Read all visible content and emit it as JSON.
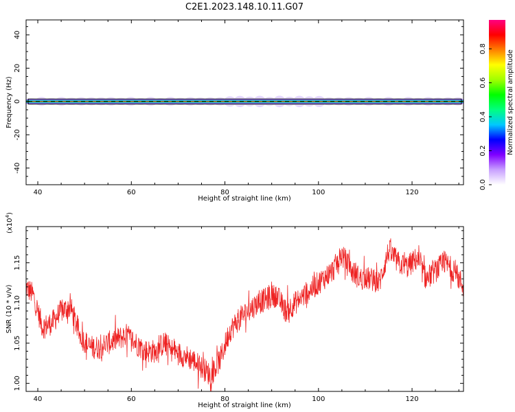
{
  "title": "C2E1.2023.148.10.11.G07",
  "chart_data": [
    {
      "type": "heatmap",
      "xlabel": "Height of straight line (km)",
      "ylabel": "Frequency (Hz)",
      "xlim": [
        37.5,
        131
      ],
      "ylim": [
        -50,
        49
      ],
      "xticks": [
        40,
        60,
        80,
        100,
        120
      ],
      "yticks": [
        -40,
        -20,
        0,
        20,
        40
      ],
      "band": {
        "center_hz": 0,
        "half_width_hz": 1.5
      },
      "colorbar": {
        "label": "Normalized spectral amplitude",
        "range": [
          0,
          0.97
        ],
        "ticks": [
          "0.0",
          "0.2",
          "0.4",
          "0.6",
          "0.8"
        ],
        "colors": [
          "#ffffff",
          "#c8a0ff",
          "#8000ff",
          "#0000ff",
          "#00c8ff",
          "#00ff80",
          "#00ff00",
          "#a0ff00",
          "#ffff00",
          "#ff8000",
          "#ff0000",
          "#ff0080"
        ]
      }
    },
    {
      "type": "line",
      "xlabel": "Height of straight line (km)",
      "ylabel": "SNR (10 * v/v)",
      "yscale_label": "(x10",
      "yscale_exp": "4",
      "xlim": [
        37.5,
        131
      ],
      "ylim": [
        0.99,
        1.195
      ],
      "xticks": [
        40,
        60,
        80,
        100,
        120
      ],
      "yticks": [
        1.0,
        1.05,
        1.1,
        1.15
      ],
      "ytick_labels": [
        "1.00",
        "1.05",
        "1.10",
        "1.15"
      ],
      "color": "#ee2222",
      "series": [
        {
          "x": [
            37.5,
            39,
            41,
            43,
            45,
            47,
            49,
            51,
            53,
            55,
            57,
            59,
            61,
            63,
            65,
            67,
            69,
            71,
            73,
            75,
            77,
            79,
            81,
            83,
            85,
            87,
            89,
            91,
            93,
            95,
            97,
            99,
            101,
            103,
            105,
            107,
            109,
            111,
            113,
            115,
            117,
            119,
            121,
            123,
            125,
            127,
            129,
            131
          ],
          "y": [
            1.12,
            1.11,
            1.07,
            1.075,
            1.09,
            1.095,
            1.06,
            1.045,
            1.045,
            1.05,
            1.055,
            1.06,
            1.05,
            1.04,
            1.04,
            1.05,
            1.04,
            1.035,
            1.03,
            1.02,
            1.01,
            1.03,
            1.065,
            1.08,
            1.09,
            1.1,
            1.105,
            1.11,
            1.09,
            1.1,
            1.11,
            1.12,
            1.13,
            1.14,
            1.16,
            1.14,
            1.13,
            1.13,
            1.125,
            1.165,
            1.15,
            1.145,
            1.155,
            1.13,
            1.14,
            1.15,
            1.14,
            1.12
          ]
        }
      ]
    }
  ]
}
